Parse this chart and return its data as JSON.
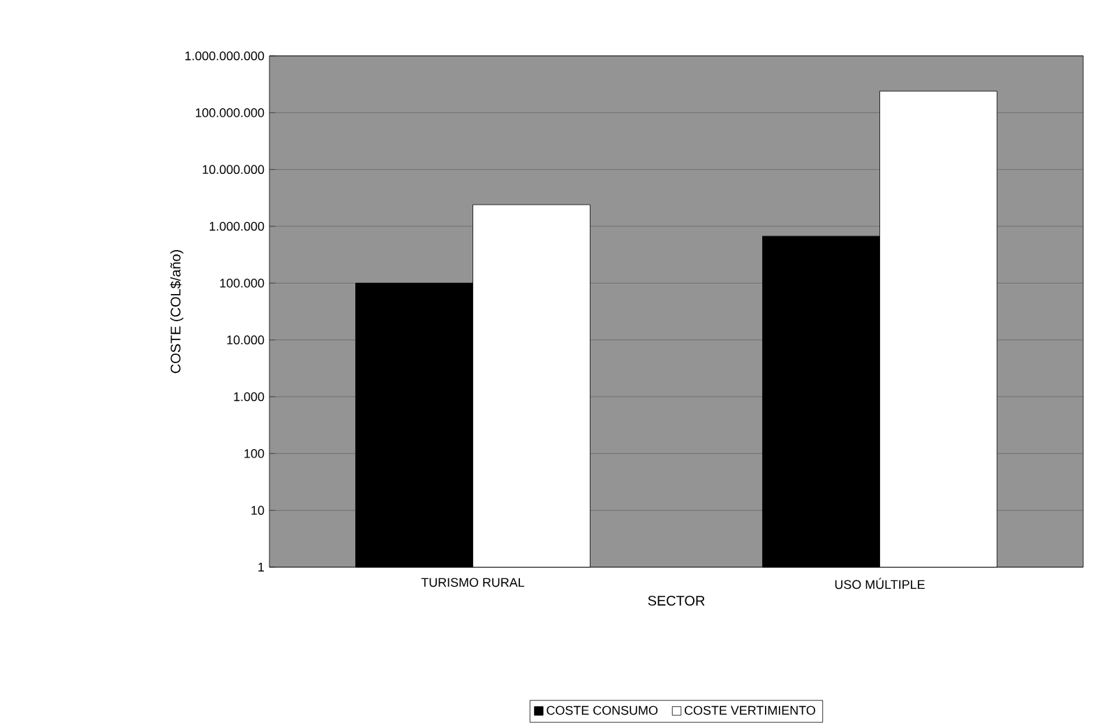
{
  "chart_data": {
    "type": "bar",
    "xlabel": "SECTOR",
    "ylabel": "COSTE (COL$/año)",
    "categories": [
      "TURISMO RURAL",
      "USO MÚLTIPLE"
    ],
    "series": [
      {
        "name": "COSTE CONSUMO",
        "color": "#000000",
        "values": [
          100000,
          670000
        ]
      },
      {
        "name": "COSTE VERTIMIENTO",
        "color": "#ffffff",
        "values": [
          2400000,
          240000000
        ]
      }
    ],
    "log": "y",
    "ylim": [
      1,
      1000000000
    ],
    "yticks": [
      {
        "value": 1,
        "label": "1"
      },
      {
        "value": 10,
        "label": "10"
      },
      {
        "value": 100,
        "label": "100"
      },
      {
        "value": 1000,
        "label": "1.000"
      },
      {
        "value": 10000,
        "label": "10.000"
      },
      {
        "value": 100000,
        "label": "100.000"
      },
      {
        "value": 1000000,
        "label": "1.000.000"
      },
      {
        "value": 10000000,
        "label": "10.000.000"
      },
      {
        "value": 100000000,
        "label": "100.000.000"
      },
      {
        "value": 1000000000,
        "label": "1.000.000.000"
      }
    ],
    "grid": "y",
    "legend": "bottom"
  }
}
